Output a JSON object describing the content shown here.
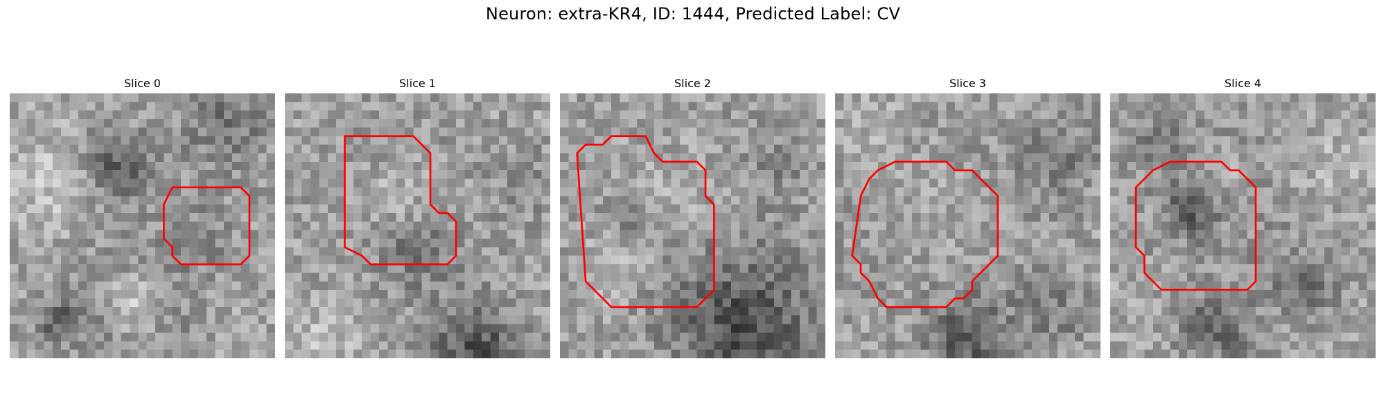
{
  "figure": {
    "title": "Neuron: extra-KR4, ID: 1444, Predicted Label: CV"
  },
  "panels": [
    {
      "title": "Slice 0",
      "seed": 11,
      "contour": [
        [
          19,
          11
        ],
        [
          27,
          11
        ],
        [
          28,
          12
        ],
        [
          28,
          19
        ],
        [
          27,
          20
        ],
        [
          20,
          20
        ],
        [
          19,
          19
        ],
        [
          19,
          18
        ],
        [
          18,
          17
        ],
        [
          18,
          13
        ]
      ],
      "blobs": [
        {
          "x": 12,
          "y": 8,
          "r": 3,
          "d": -70
        },
        {
          "x": 25,
          "y": 3,
          "r": 4,
          "d": -45
        },
        {
          "x": 14,
          "y": 24,
          "r": 5,
          "d": -45
        },
        {
          "x": 14,
          "y": 24,
          "r": 2.5,
          "d": 80
        },
        {
          "x": 5,
          "y": 10,
          "r": 4,
          "d": 30
        },
        {
          "x": 22,
          "y": 16,
          "r": 3,
          "d": -25
        },
        {
          "x": 5,
          "y": 26,
          "r": 2,
          "d": -55
        }
      ]
    },
    {
      "title": "Slice 1",
      "seed": 23,
      "contour": [
        [
          7,
          5
        ],
        [
          15,
          5
        ],
        [
          17,
          7
        ],
        [
          17,
          13
        ],
        [
          18,
          14
        ],
        [
          19,
          14
        ],
        [
          20,
          15
        ],
        [
          20,
          19
        ],
        [
          19,
          20
        ],
        [
          10,
          20
        ],
        [
          9,
          19
        ],
        [
          7,
          18
        ]
      ],
      "blobs": [
        {
          "x": 13,
          "y": 12,
          "r": 5,
          "d": 45
        },
        {
          "x": 13,
          "y": 12,
          "r": 7.5,
          "d": -35
        },
        {
          "x": 15,
          "y": 18,
          "r": 3,
          "d": -40
        },
        {
          "x": 22,
          "y": 30,
          "r": 4,
          "d": -80
        },
        {
          "x": 28,
          "y": 10,
          "r": 3,
          "d": -20
        },
        {
          "x": 4,
          "y": 28,
          "r": 3,
          "d": 25
        }
      ]
    },
    {
      "title": "Slice 2",
      "seed": 37,
      "contour": [
        [
          6,
          5
        ],
        [
          10,
          5
        ],
        [
          11,
          7
        ],
        [
          12,
          8
        ],
        [
          16,
          8
        ],
        [
          17,
          9
        ],
        [
          17,
          12
        ],
        [
          18,
          13
        ],
        [
          18,
          23
        ],
        [
          16,
          25
        ],
        [
          6,
          25
        ],
        [
          4,
          23
        ],
        [
          3,
          22
        ],
        [
          2,
          7
        ],
        [
          3,
          6
        ],
        [
          5,
          6
        ]
      ],
      "blobs": [
        {
          "x": 12,
          "y": 11,
          "r": 6,
          "d": 55
        },
        {
          "x": 12,
          "y": 11,
          "r": 8,
          "d": -45
        },
        {
          "x": 8,
          "y": 14,
          "r": 2,
          "d": -40
        },
        {
          "x": 21,
          "y": 27,
          "r": 6,
          "d": -85
        },
        {
          "x": 25,
          "y": 8,
          "r": 3,
          "d": -20
        },
        {
          "x": 6,
          "y": 20,
          "r": 3,
          "d": 25
        }
      ]
    },
    {
      "title": "Slice 3",
      "seed": 53,
      "contour": [
        [
          7,
          8
        ],
        [
          13,
          8
        ],
        [
          14,
          9
        ],
        [
          16,
          9
        ],
        [
          19,
          12
        ],
        [
          19,
          19
        ],
        [
          17,
          21
        ],
        [
          16,
          22
        ],
        [
          16,
          23
        ],
        [
          15,
          24
        ],
        [
          14,
          24
        ],
        [
          13,
          25
        ],
        [
          6,
          25
        ],
        [
          5,
          24
        ],
        [
          4,
          22
        ],
        [
          3,
          21
        ],
        [
          3,
          20
        ],
        [
          2,
          19
        ],
        [
          3,
          12
        ],
        [
          4,
          10
        ],
        [
          5,
          9
        ]
      ],
      "blobs": [
        {
          "x": 12,
          "y": 14,
          "r": 6,
          "d": 55
        },
        {
          "x": 12,
          "y": 14,
          "r": 8,
          "d": -50
        },
        {
          "x": 15,
          "y": 28,
          "r": 3,
          "d": -75
        },
        {
          "x": 26,
          "y": 7,
          "r": 4,
          "d": -30
        },
        {
          "x": 25,
          "y": 25,
          "r": 3,
          "d": -35
        },
        {
          "x": 4,
          "y": 4,
          "r": 3,
          "d": 20
        }
      ]
    },
    {
      "title": "Slice 4",
      "seed": 71,
      "contour": [
        [
          7,
          8
        ],
        [
          13,
          8
        ],
        [
          14,
          9
        ],
        [
          15,
          9
        ],
        [
          17,
          11
        ],
        [
          17,
          22
        ],
        [
          16,
          23
        ],
        [
          6,
          23
        ],
        [
          4,
          21
        ],
        [
          4,
          19
        ],
        [
          3,
          18
        ],
        [
          3,
          11
        ],
        [
          5,
          9
        ]
      ],
      "blobs": [
        {
          "x": 13,
          "y": 9,
          "r": 4,
          "d": 45
        },
        {
          "x": 13,
          "y": 9,
          "r": 6,
          "d": -45
        },
        {
          "x": 9,
          "y": 13,
          "r": 2,
          "d": -70
        },
        {
          "x": 12,
          "y": 27,
          "r": 3,
          "d": -60
        },
        {
          "x": 22,
          "y": 22,
          "r": 3,
          "d": -45
        },
        {
          "x": 5,
          "y": 5,
          "r": 2.5,
          "d": -25
        },
        {
          "x": 25,
          "y": 8,
          "r": 3,
          "d": 20
        }
      ]
    }
  ]
}
